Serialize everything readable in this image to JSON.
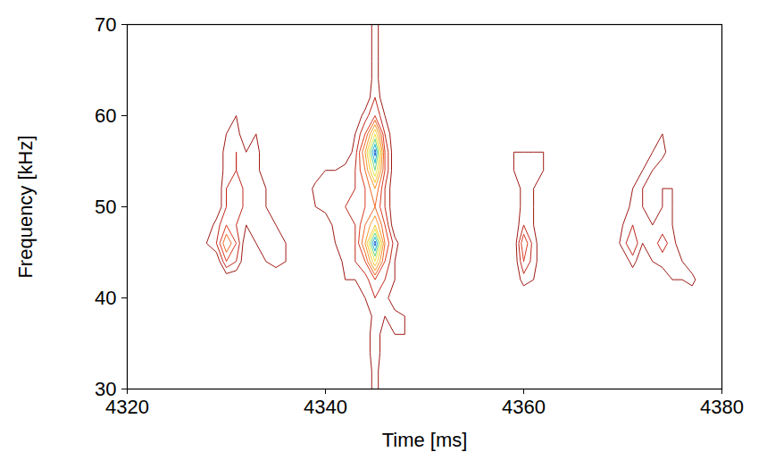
{
  "chart_data": {
    "type": "contour",
    "x_label": "Time [ms]",
    "y_label": "Frequency [kHz]",
    "xlim": [
      4320,
      4380
    ],
    "ylim": [
      30,
      70
    ],
    "xticks": [
      4320,
      4340,
      4360,
      4380
    ],
    "yticks": [
      30,
      40,
      50,
      60,
      70
    ],
    "levels": [
      1,
      2,
      3,
      4,
      5,
      6,
      7,
      8,
      9,
      10
    ],
    "colors": [
      "#9e1b14",
      "#c0281c",
      "#dd3a22",
      "#ef6a28",
      "#f79b2e",
      "#f8c93a",
      "#e8e84a",
      "#6fd68a",
      "#27b8d8",
      "#1f5fc8"
    ],
    "x": [
      4320,
      4321,
      4322,
      4323,
      4324,
      4325,
      4326,
      4327,
      4328,
      4329,
      4330,
      4331,
      4332,
      4333,
      4334,
      4335,
      4336,
      4337,
      4338,
      4339,
      4340,
      4341,
      4342,
      4343,
      4344,
      4345,
      4346,
      4347,
      4348,
      4349,
      4350,
      4351,
      4352,
      4353,
      4354,
      4355,
      4356,
      4357,
      4358,
      4359,
      4360,
      4361,
      4362,
      4363,
      4364,
      4365,
      4366,
      4367,
      4368,
      4369,
      4370,
      4371,
      4372,
      4373,
      4374,
      4375,
      4376,
      4377,
      4378,
      4379,
      4380
    ],
    "y": [
      30,
      32,
      34,
      36,
      38,
      40,
      42,
      44,
      46,
      48,
      50,
      52,
      54,
      56,
      58,
      60,
      62,
      64,
      66,
      68,
      70
    ],
    "z": [
      [
        0,
        0,
        0,
        0,
        0,
        0,
        0,
        0,
        0,
        0,
        0,
        0,
        0,
        0,
        0,
        0,
        0,
        0,
        0,
        0,
        0,
        0,
        0,
        0,
        0,
        1.5,
        0,
        0,
        0,
        0,
        0,
        0,
        0,
        0,
        0,
        0,
        0,
        0,
        0,
        0,
        0,
        0,
        0,
        0,
        0,
        0,
        0,
        0,
        0,
        0,
        0,
        0,
        0,
        0,
        0,
        0,
        0,
        0,
        0,
        0,
        0
      ],
      [
        0,
        0,
        0,
        0,
        0,
        0,
        0,
        0,
        0,
        0,
        0,
        0,
        0,
        0,
        0,
        0,
        0,
        0,
        0,
        0,
        0,
        0,
        0,
        0,
        0,
        1.5,
        0,
        0,
        0,
        0,
        0,
        0,
        0,
        0,
        0,
        0,
        0,
        0,
        0,
        0,
        0,
        0,
        0,
        0,
        0,
        0,
        0,
        0,
        0,
        0,
        0,
        0,
        0,
        0,
        0,
        0,
        0,
        0,
        0,
        0,
        0
      ],
      [
        0,
        0,
        0,
        0,
        0,
        0,
        0,
        0,
        0,
        0,
        0,
        0,
        0,
        0,
        0,
        0,
        0,
        0,
        0,
        0,
        0,
        0,
        0,
        0,
        0,
        2,
        0,
        0,
        0,
        0,
        0,
        0,
        0,
        0,
        0,
        0,
        0,
        0,
        0,
        0,
        0,
        0,
        0,
        0,
        0,
        0,
        0,
        0,
        0,
        0,
        0,
        0,
        0,
        0,
        0,
        0,
        0,
        0,
        0,
        0,
        0
      ],
      [
        0,
        0,
        0,
        0,
        0,
        0,
        0,
        0,
        0,
        0,
        0,
        0,
        0,
        0,
        0,
        0,
        0,
        0,
        0,
        0,
        0,
        0,
        0,
        0,
        0,
        2,
        0,
        1,
        1,
        0,
        0,
        0,
        0,
        0,
        0,
        0,
        0,
        0,
        0,
        0,
        0,
        0,
        0,
        0,
        0,
        0,
        0,
        0,
        0,
        0,
        0,
        0,
        0,
        0,
        0,
        0,
        0,
        0,
        0,
        0,
        0
      ],
      [
        0,
        0,
        0,
        0,
        0,
        0,
        0,
        0,
        0,
        0,
        0,
        0,
        0,
        0,
        0,
        0,
        0,
        0,
        0,
        0,
        0,
        0,
        0,
        0,
        0,
        1.5,
        1,
        1.5,
        1,
        0,
        0,
        0,
        0,
        0,
        0,
        0,
        0,
        0,
        0,
        0,
        0,
        0,
        0,
        0,
        0,
        0,
        0,
        0,
        0,
        0,
        0,
        0,
        0,
        0,
        0,
        0,
        0,
        0,
        0,
        0,
        0
      ],
      [
        0,
        0,
        0,
        0,
        0,
        0,
        0,
        0,
        0,
        0,
        0,
        0,
        0,
        0,
        0,
        0,
        0,
        0,
        0,
        0,
        0,
        0,
        0,
        0,
        1,
        2,
        1.5,
        0,
        0,
        0,
        0,
        0,
        0,
        0,
        0,
        0,
        0,
        0,
        0,
        0,
        0,
        0,
        0,
        0,
        0,
        0,
        0,
        0,
        0,
        0,
        0,
        0,
        0,
        0,
        0,
        0,
        0,
        0,
        0,
        0,
        0
      ],
      [
        0,
        0,
        0,
        0,
        0,
        0,
        0,
        0,
        0,
        0,
        0,
        0,
        0,
        0,
        0,
        0,
        0,
        0,
        0,
        0,
        0,
        0,
        1,
        1,
        1.5,
        3,
        2,
        1,
        0,
        0,
        0,
        0,
        0,
        0,
        0,
        0,
        0,
        0,
        0,
        0,
        1.5,
        1,
        0,
        0,
        0,
        0,
        0,
        0,
        0,
        0,
        0,
        0,
        0,
        0,
        0,
        1,
        1,
        1.5,
        0,
        0,
        0
      ],
      [
        0,
        0,
        0,
        0,
        0,
        0,
        0,
        0,
        0,
        0,
        3,
        2,
        0,
        0,
        1,
        1.5,
        1,
        0,
        0,
        0,
        0,
        0,
        1.5,
        2,
        3,
        7,
        3,
        1,
        0,
        0,
        0,
        0,
        0,
        0,
        0,
        0,
        0,
        0,
        0,
        0,
        3,
        1.5,
        0,
        0,
        0,
        0,
        0,
        0,
        0,
        0,
        0,
        1.5,
        0,
        1,
        1.5,
        1.5,
        1,
        0,
        0,
        0,
        0
      ],
      [
        0,
        0,
        0,
        0,
        0,
        0,
        0,
        0,
        1,
        2,
        5,
        3,
        0,
        1,
        1.5,
        1.5,
        1,
        0,
        0,
        0,
        0,
        1,
        1.5,
        2,
        5,
        10.5,
        4,
        1.5,
        0,
        0,
        0,
        0,
        0,
        0,
        0,
        0,
        0,
        0,
        0,
        0,
        4,
        1.5,
        0,
        0,
        0,
        0,
        0,
        0,
        0,
        0,
        1.5,
        3,
        1,
        1.5,
        2.5,
        1.5,
        0,
        0,
        0,
        0,
        0
      ],
      [
        0,
        0,
        0,
        0,
        0,
        0,
        0,
        0,
        0,
        1.5,
        3,
        2,
        1,
        1.5,
        1.5,
        1,
        0,
        0,
        0,
        0,
        0,
        1.5,
        1.5,
        2,
        4,
        6,
        3,
        0,
        0,
        0,
        0,
        0,
        0,
        0,
        0,
        0,
        0,
        0,
        0,
        0,
        2,
        1,
        0,
        0,
        0,
        0,
        0,
        0,
        0,
        0,
        1,
        2,
        1,
        1,
        1.5,
        1,
        0,
        0,
        0,
        0,
        0
      ],
      [
        0,
        0,
        0,
        0,
        0,
        0,
        0,
        0,
        1,
        0,
        2,
        3,
        1.5,
        1.5,
        1,
        0,
        0,
        0,
        0,
        1,
        1.5,
        1.5,
        2,
        2.5,
        3,
        4,
        2,
        0,
        0,
        0,
        0,
        0,
        0,
        0,
        0,
        0,
        0,
        0,
        0,
        0,
        1.5,
        1,
        0,
        0,
        0,
        0,
        0,
        0,
        0,
        0,
        0,
        1.5,
        1,
        0,
        1,
        1,
        0,
        0,
        0,
        0,
        0
      ],
      [
        0,
        0,
        0,
        0,
        0,
        1,
        0,
        0,
        0,
        0,
        2,
        3,
        1.5,
        1.5,
        1,
        0,
        0,
        0,
        0,
        1.5,
        1.5,
        1,
        1.5,
        2,
        3,
        5,
        2,
        0,
        0,
        0,
        0,
        0,
        0,
        0,
        0,
        0,
        0,
        0,
        0,
        0,
        1.5,
        1,
        0,
        0,
        0,
        0,
        0,
        0,
        0,
        0,
        0,
        1,
        1,
        0,
        1,
        1,
        0,
        0,
        0,
        0,
        0
      ],
      [
        0,
        0,
        0,
        0,
        0,
        0,
        0,
        0,
        0,
        0,
        1.5,
        2,
        1.5,
        1.5,
        0,
        0,
        0,
        0,
        0,
        0,
        1,
        1,
        1.5,
        2,
        4,
        8,
        3,
        0,
        0,
        0,
        0,
        0,
        0,
        0,
        0,
        0,
        0,
        0,
        0,
        1,
        1,
        1.5,
        1,
        0,
        0,
        0,
        0,
        0,
        0,
        0,
        0,
        0,
        1,
        1,
        0,
        0,
        0,
        0,
        0,
        0,
        0
      ],
      [
        0,
        0,
        0,
        0,
        0,
        0,
        0,
        0,
        0,
        0,
        1.5,
        2,
        1,
        1.5,
        0,
        0,
        0,
        0,
        0,
        0,
        0,
        0,
        0,
        1.5,
        5,
        10.5,
        3,
        0,
        0,
        0,
        0,
        0,
        0,
        0,
        0,
        0,
        0,
        0,
        0,
        1,
        1,
        1,
        1,
        0,
        0,
        0,
        0,
        0,
        0,
        0,
        0,
        0,
        0,
        1,
        1.5,
        0,
        0,
        0,
        0,
        0,
        0
      ],
      [
        0,
        0,
        0,
        0,
        0,
        0,
        0,
        0,
        0,
        0,
        1,
        1.5,
        0,
        1,
        0,
        0,
        0,
        0,
        0,
        0,
        0,
        0,
        0,
        1,
        3,
        7,
        2,
        0,
        0,
        0,
        0,
        0,
        0,
        0,
        0,
        0,
        0,
        0,
        0,
        0,
        0,
        0,
        0,
        0,
        0,
        0,
        0,
        0,
        0,
        0,
        0,
        0,
        0,
        0,
        1,
        0,
        0,
        0,
        0,
        0,
        0
      ],
      [
        0,
        0,
        0,
        0,
        0,
        0,
        0,
        0,
        0,
        0,
        0,
        1,
        0,
        0,
        0,
        0,
        0,
        0,
        0,
        0,
        0,
        0,
        0,
        0,
        1.5,
        3,
        1,
        0,
        0,
        0,
        0,
        0,
        0,
        0,
        0,
        0,
        0,
        0,
        0,
        0,
        0,
        0,
        0,
        0,
        0,
        0,
        0,
        0,
        0,
        0,
        0,
        0,
        0,
        0,
        0,
        0,
        0,
        0,
        0,
        0,
        0
      ],
      [
        0,
        0,
        0,
        0,
        0,
        0,
        0,
        0,
        0,
        0,
        0,
        0,
        0,
        0,
        0,
        0,
        0,
        0,
        0,
        0,
        0,
        0,
        0,
        0,
        0,
        2,
        0,
        0,
        0,
        0,
        0,
        0,
        0,
        0,
        0,
        0,
        0,
        0,
        0,
        0,
        0,
        0,
        0,
        0,
        0,
        0,
        0,
        0,
        0,
        0,
        0,
        0,
        0,
        0,
        0,
        0,
        0,
        0,
        0,
        0,
        0
      ],
      [
        0,
        0,
        0,
        0,
        0,
        0,
        0,
        0,
        0,
        0,
        0,
        0,
        0,
        0,
        0,
        0,
        0,
        0,
        0,
        0,
        0,
        0,
        0,
        0,
        0,
        1.5,
        0,
        0,
        0,
        0,
        0,
        0,
        0,
        0,
        0,
        0,
        0,
        0,
        0,
        0,
        0,
        0,
        0,
        0,
        0,
        0,
        0,
        0,
        0,
        0,
        0,
        0,
        0,
        0,
        0,
        0,
        0,
        0,
        0,
        0,
        0
      ],
      [
        0,
        0,
        0,
        0,
        0,
        0,
        0,
        0,
        0,
        0,
        0,
        0,
        0,
        0,
        0,
        0,
        0,
        0,
        0,
        0,
        0,
        0,
        0,
        0,
        0,
        1.5,
        0,
        0,
        0,
        0,
        0,
        0,
        0,
        0,
        0,
        0,
        0,
        0,
        0,
        0,
        0,
        0,
        0,
        0,
        0,
        0,
        0,
        0,
        0,
        0,
        0,
        0,
        0,
        0,
        0,
        0,
        0,
        0,
        0,
        0,
        0
      ],
      [
        0,
        0,
        0,
        0,
        0,
        0,
        0,
        0,
        0,
        0,
        0,
        0,
        0,
        0,
        0,
        0,
        0,
        0,
        0,
        0,
        0,
        0,
        0,
        0,
        0,
        1.5,
        0,
        0,
        0,
        0,
        0,
        0,
        0,
        0,
        0,
        0,
        0,
        0,
        0,
        0,
        0,
        0,
        0,
        0,
        0,
        0,
        0,
        0,
        0,
        0,
        0,
        0,
        0,
        0,
        0,
        0,
        0,
        0,
        0,
        0,
        0
      ],
      [
        0,
        0,
        0,
        0,
        0,
        0,
        0,
        0,
        0,
        0,
        0,
        0,
        0,
        0,
        0,
        0,
        0,
        0,
        0,
        0,
        0,
        0,
        0,
        0,
        0,
        1.5,
        0,
        0,
        0,
        0,
        0,
        0,
        0,
        0,
        0,
        0,
        0,
        0,
        0,
        0,
        0,
        0,
        0,
        0,
        0,
        0,
        0,
        0,
        0,
        0,
        0,
        0,
        0,
        0,
        0,
        0,
        0,
        0,
        0,
        0,
        0
      ]
    ]
  }
}
